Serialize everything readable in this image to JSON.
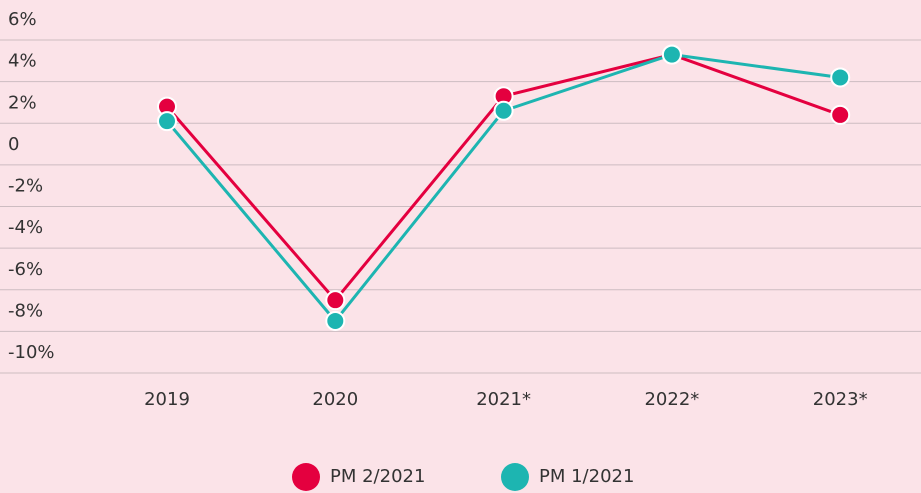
{
  "chart_data": {
    "type": "line",
    "categories": [
      "2019",
      "2020",
      "2021*",
      "2022*",
      "2023*"
    ],
    "series": [
      {
        "name": "PM 2/2021",
        "color": "#e4003f",
        "values": [
          2.8,
          -6.5,
          3.3,
          5.3,
          2.4
        ]
      },
      {
        "name": "PM 1/2021",
        "color": "#1db5b1",
        "values": [
          2.1,
          -7.5,
          2.6,
          5.3,
          4.2
        ]
      }
    ],
    "ylim": [
      -10,
      6
    ],
    "yticks": [
      {
        "value": -10,
        "label": "-10%"
      },
      {
        "value": -8,
        "label": "-8%"
      },
      {
        "value": -6,
        "label": "-6%"
      },
      {
        "value": -4,
        "label": "-4%"
      },
      {
        "value": -2,
        "label": "-2%"
      },
      0,
      {
        "value": 2,
        "label": "2%"
      },
      {
        "value": 4,
        "label": "4%"
      },
      {
        "value": 6,
        "label": "6%"
      }
    ],
    "grid": true
  }
}
